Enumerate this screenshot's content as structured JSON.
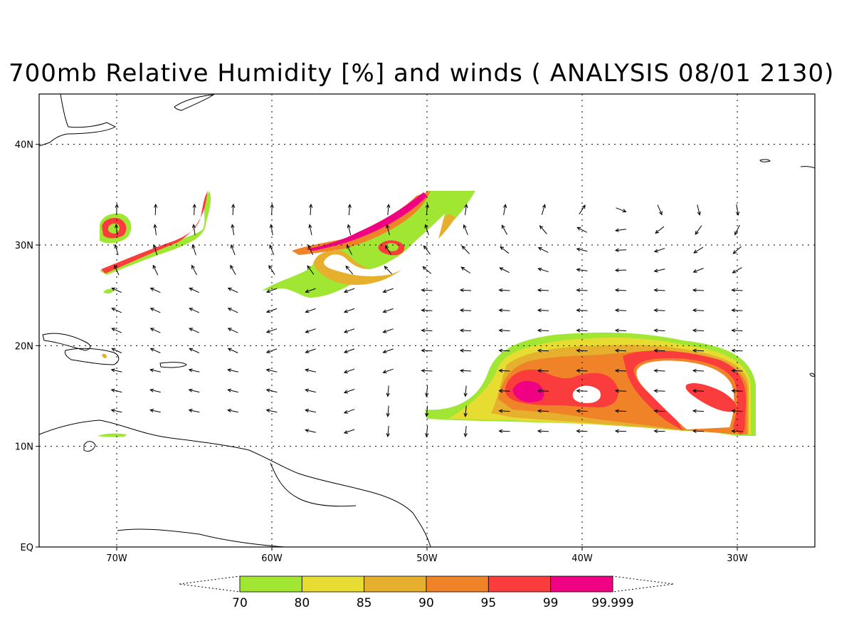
{
  "title": "700mb Relative Humidity [%] and winds ( ANALYSIS 08/01 2130)",
  "map": {
    "lon_range": [
      -75,
      -25
    ],
    "lat_range": [
      0,
      45
    ],
    "lat_ticks": [
      {
        "value": 0,
        "label": "EQ"
      },
      {
        "value": 10,
        "label": "10N"
      },
      {
        "value": 20,
        "label": "20N"
      },
      {
        "value": 30,
        "label": "30N"
      },
      {
        "value": 40,
        "label": "40N"
      }
    ],
    "lon_ticks": [
      {
        "value": -70,
        "label": "70W"
      },
      {
        "value": -60,
        "label": "60W"
      },
      {
        "value": -50,
        "label": "50W"
      },
      {
        "value": -40,
        "label": "40W"
      },
      {
        "value": -30,
        "label": "30W"
      }
    ]
  },
  "colorbar": {
    "levels": [
      "70",
      "80",
      "85",
      "90",
      "95",
      "99",
      "99.999"
    ],
    "colors": [
      "#a0e632",
      "#e6dc32",
      "#e6af2d",
      "#f08228",
      "#fa3c3c",
      "#f00082"
    ]
  },
  "wind_field_rows": [
    {
      "lat": 33.5,
      "lons": [
        -70,
        -67.5,
        -65,
        -62.5,
        -60,
        -57.5,
        -55,
        -52.5,
        -50,
        -47.5,
        -45,
        -42.5,
        -40,
        -37.5,
        -35,
        -32.5,
        -30
      ]
    },
    {
      "lat": 31.5,
      "lons": [
        -70,
        -67.5,
        -65,
        -62.5,
        -60,
        -57.5,
        -55,
        -52.5,
        -50,
        -47.5,
        -45,
        -42.5,
        -40,
        -37.5,
        -35,
        -32.5,
        -30
      ]
    },
    {
      "lat": 29.5,
      "lons": [
        -70,
        -67.5,
        -65,
        -62.5,
        -60,
        -57.5,
        -55,
        -52.5,
        -50,
        -47.5,
        -45,
        -42.5,
        -40,
        -37.5,
        -35,
        -32.5,
        -30
      ]
    },
    {
      "lat": 27.5,
      "lons": [
        -70,
        -67.5,
        -65,
        -62.5,
        -60,
        -57.5,
        -55,
        -52.5,
        -50,
        -47.5,
        -45,
        -42.5,
        -40,
        -37.5,
        -35,
        -32.5,
        -30
      ]
    },
    {
      "lat": 25.5,
      "lons": [
        -70,
        -67.5,
        -65,
        -62.5,
        -60,
        -57.5,
        -55,
        -52.5,
        -50,
        -47.5,
        -45,
        -42.5,
        -40,
        -37.5,
        -35,
        -32.5,
        -30
      ]
    },
    {
      "lat": 23.5,
      "lons": [
        -70,
        -67.5,
        -65,
        -62.5,
        -60,
        -57.5,
        -55,
        -52.5,
        -50,
        -47.5,
        -45,
        -42.5,
        -40,
        -37.5,
        -35,
        -32.5,
        -30
      ]
    },
    {
      "lat": 21.5,
      "lons": [
        -70,
        -67.5,
        -65,
        -62.5,
        -60,
        -57.5,
        -55,
        -52.5,
        -50,
        -47.5,
        -45,
        -42.5,
        -40,
        -37.5,
        -35,
        -32.5,
        -30
      ]
    },
    {
      "lat": 19.5,
      "lons": [
        -70,
        -67.5,
        -65,
        -62.5,
        -60,
        -57.5,
        -55,
        -52.5,
        -50,
        -47.5,
        -45,
        -42.5,
        -40,
        -37.5,
        -35,
        -32.5,
        -30
      ]
    },
    {
      "lat": 17.5,
      "lons": [
        -70,
        -67.5,
        -65,
        -62.5,
        -60,
        -57.5,
        -55,
        -52.5,
        -50,
        -47.5,
        -45,
        -42.5,
        -40,
        -37.5,
        -35,
        -32.5,
        -30
      ]
    },
    {
      "lat": 15.5,
      "lons": [
        -70,
        -67.5,
        -65,
        -62.5,
        -60,
        -57.5,
        -55,
        -52.5,
        -50,
        -47.5,
        -45,
        -42.5,
        -40,
        -37.5,
        -35,
        -32.5,
        -30
      ]
    },
    {
      "lat": 13.5,
      "lons": [
        -70,
        -67.5,
        -65,
        -62.5,
        -60,
        -57.5,
        -55,
        -52.5,
        -50,
        -47.5,
        -45,
        -42.5,
        -40,
        -37.5,
        -35,
        -32.5,
        -30
      ]
    },
    {
      "lat": 11.5,
      "lons": [
        -57.5,
        -55,
        -52.5,
        -50,
        -47.5,
        -45,
        -42.5,
        -40,
        -37.5,
        -35,
        -32.5,
        -30
      ]
    }
  ]
}
